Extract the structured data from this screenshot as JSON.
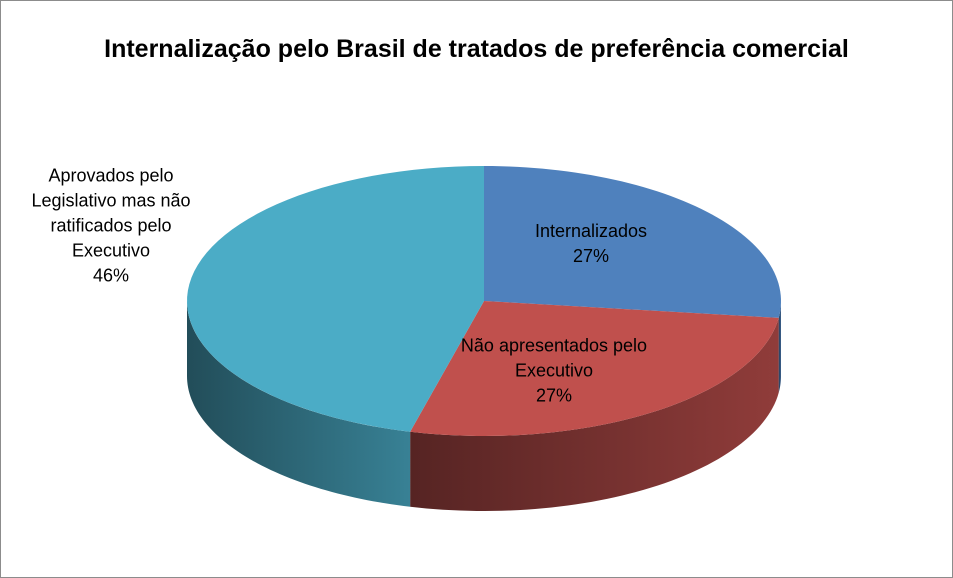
{
  "chart_data": {
    "type": "pie",
    "title": "Internalização pelo Brasil de tratados de preferência comercial",
    "categories": [
      "Internalizados",
      "Não apresentados pelo Executivo",
      "Aprovados pelo Legislativo mas não ratificados pelo Executivo"
    ],
    "values": [
      27,
      27,
      46
    ],
    "value_labels": [
      "27%",
      "27%",
      "46%"
    ],
    "colors": [
      "#4f81bd",
      "#c0504d",
      "#4bacc6"
    ]
  }
}
